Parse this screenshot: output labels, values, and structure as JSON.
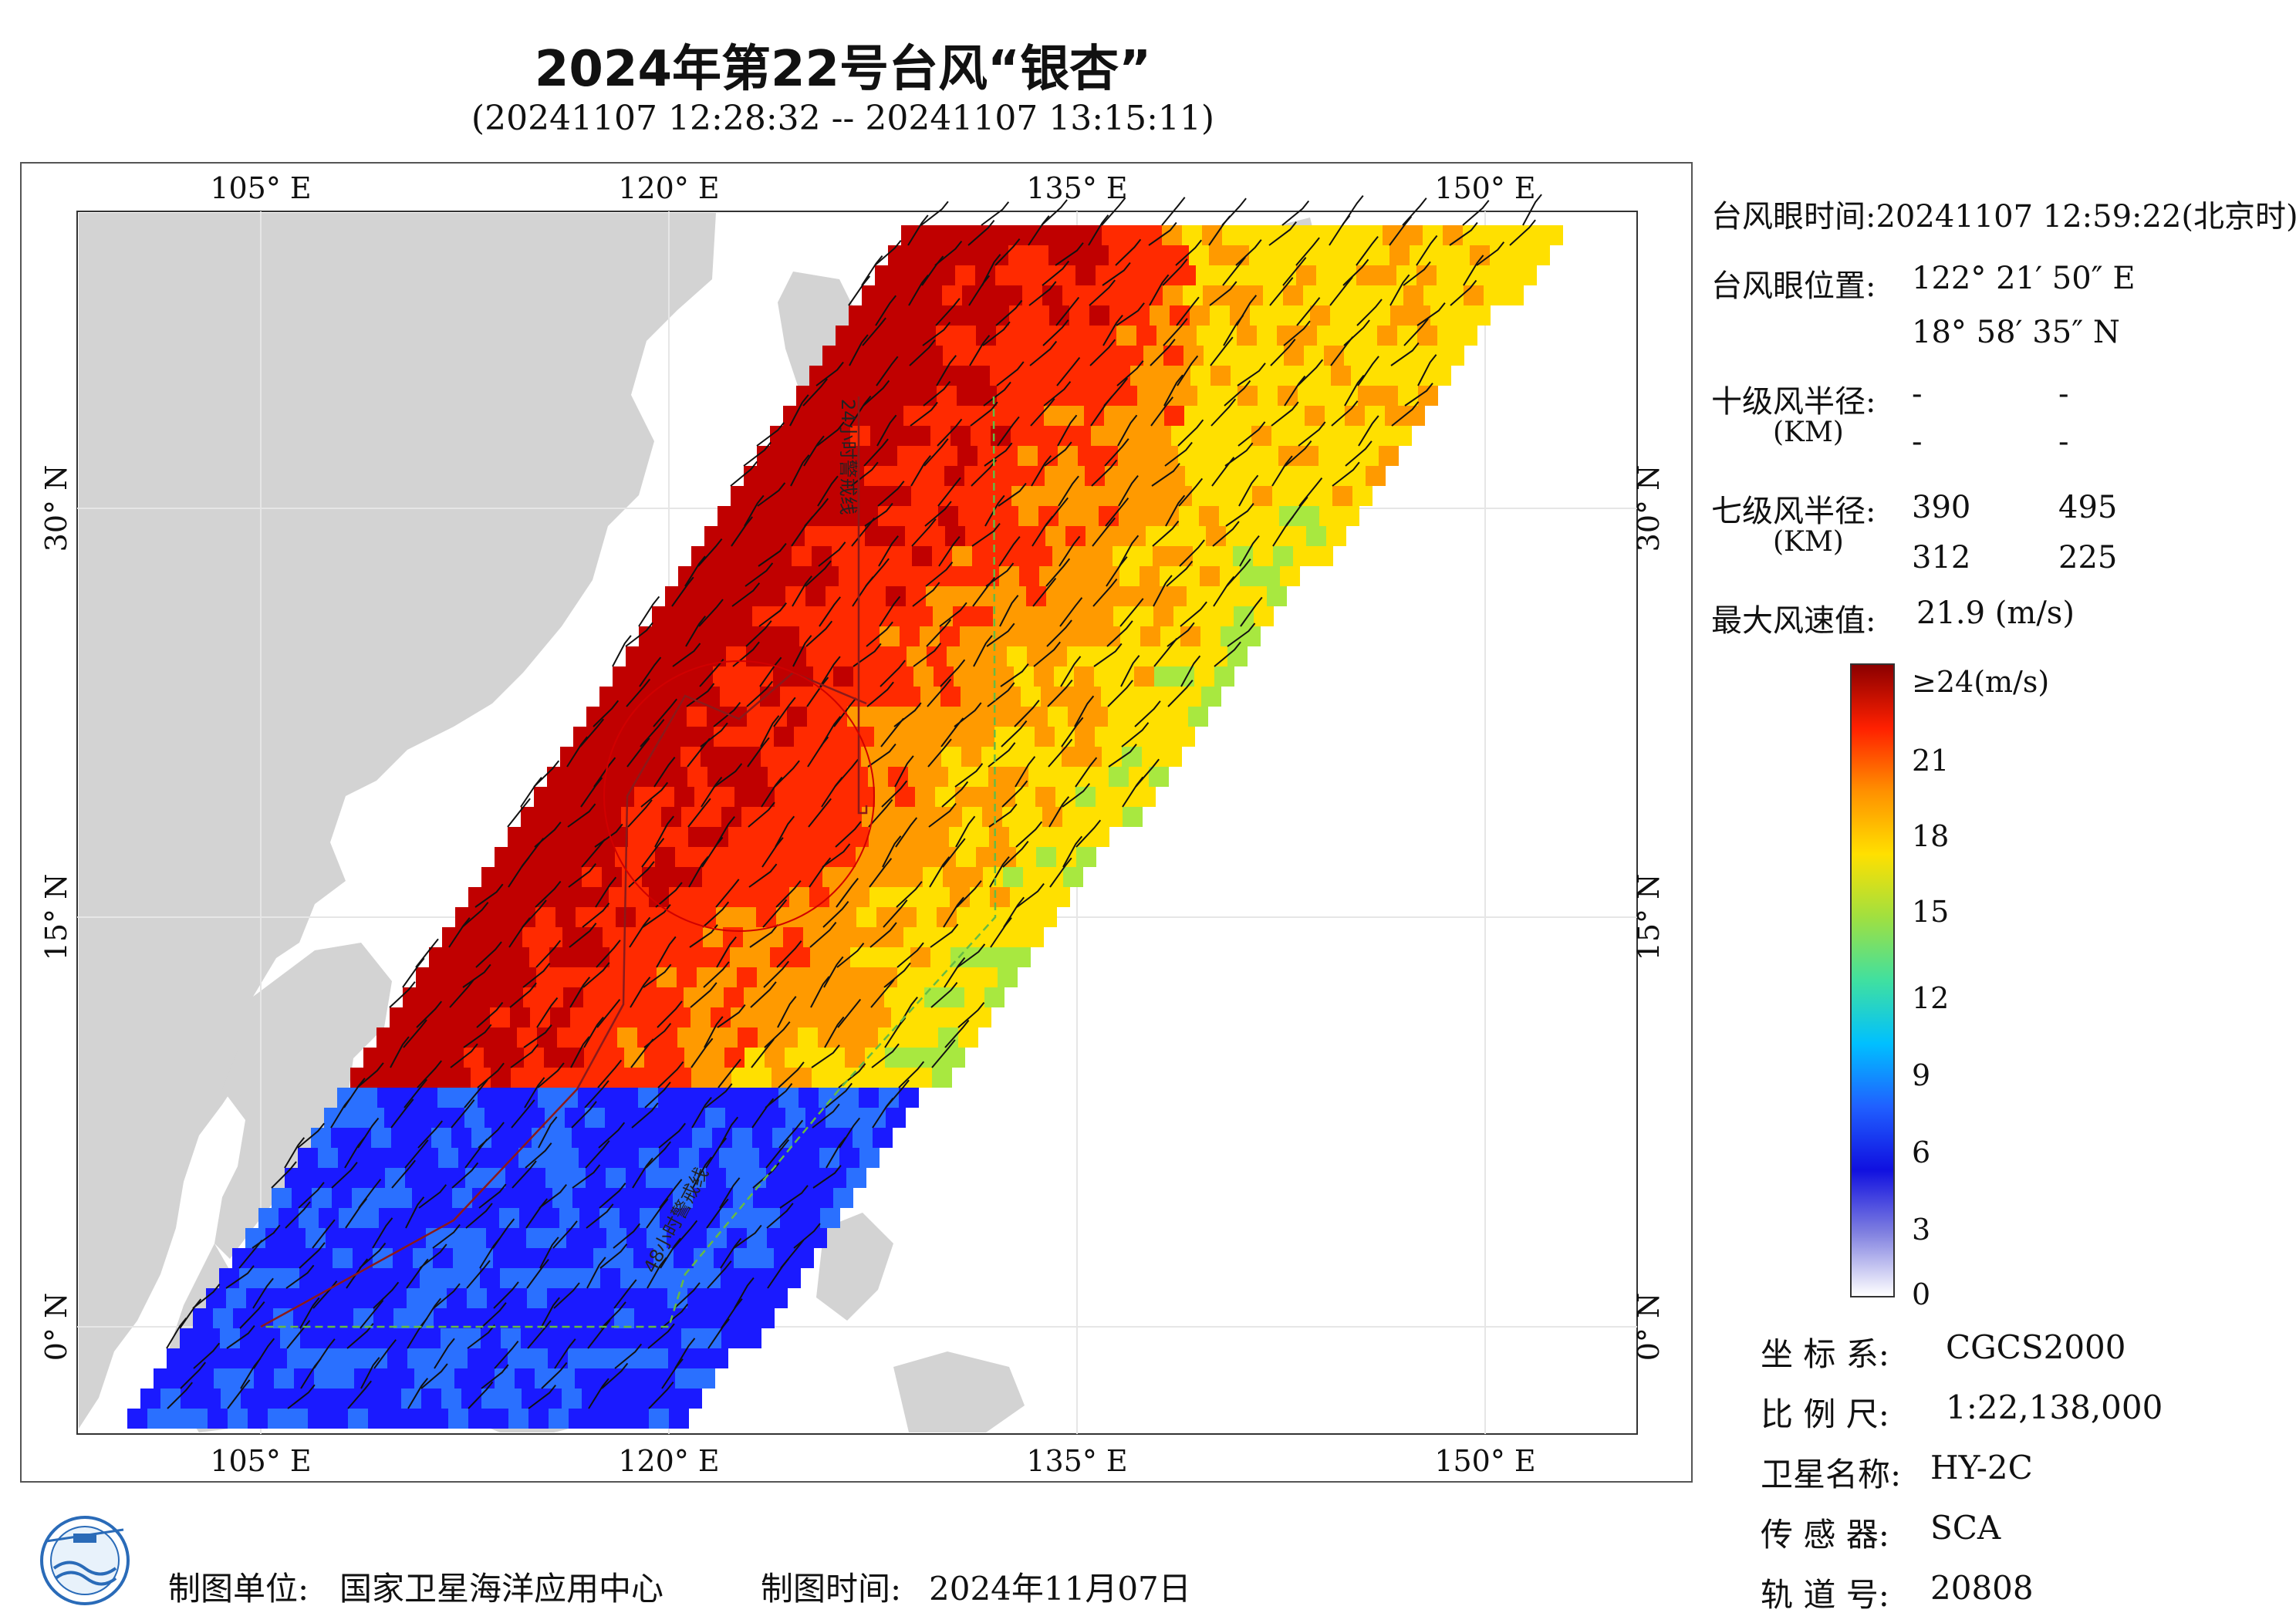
{
  "header": {
    "title": "2024年第22号台风“银杏”",
    "subtitle": "(20241107 12:28:32 -- 20241107 13:15:11)"
  },
  "map": {
    "lon_ticks": [
      "105° E",
      "120° E",
      "135° E",
      "150° E"
    ],
    "lat_ticks": [
      "30° N",
      "15° N",
      "0° N"
    ],
    "warning_line_24h": "24小时警戒线",
    "warning_line_48h": "48小时警戒线",
    "colors": {
      "land": "#d3d3d3",
      "sea": "#ffffff",
      "warning_24h": "#8b1a1a",
      "warning_48h": "#66bb44",
      "track": "#b00000"
    }
  },
  "info": {
    "eye_time": "台风眼时间:20241107 12:59:22(北京时)",
    "eye_pos_label": "台风眼位置:",
    "eye_lon": "122° 21′ 50″ E",
    "eye_lat": "18° 58′ 35″ N",
    "r10_label": "十级风半径:",
    "r10_unit": "(KM)",
    "r10_values": [
      "-",
      "-",
      "-",
      "-"
    ],
    "r7_label": "七级风半径:",
    "r7_unit": "(KM)",
    "r7_values": [
      "390",
      "495",
      "312",
      "225"
    ],
    "vmax_label": "最大风速值:",
    "vmax_value": "21.9 (m/s)"
  },
  "colorbar": {
    "labels": [
      "≥24(m/s)",
      "21",
      "18",
      "15",
      "12",
      "9",
      "6",
      "3",
      "0"
    ],
    "colors": [
      "#ffffff",
      "#8080e0",
      "#1010e0",
      "#2060ff",
      "#00c0ff",
      "#40e0a0",
      "#a0e040",
      "#ffe000",
      "#ff9000",
      "#ff2000",
      "#8b0000"
    ]
  },
  "meta": {
    "crs_label": "坐 标 系:",
    "crs_value": "CGCS2000",
    "scale_label": "比 例 尺:",
    "scale_value": "1:22,138,000",
    "sat_label": "卫星名称:",
    "sat_value": "HY-2C",
    "sensor_label": "传 感 器:",
    "sensor_value": "SCA",
    "orbit_label": "轨 道 号:",
    "orbit_value": "20808"
  },
  "footer": {
    "unit_label": "制图单位:",
    "unit_value": "国家卫星海洋应用中心",
    "time_label": "制图时间:",
    "time_value": "2024年11月07日"
  }
}
